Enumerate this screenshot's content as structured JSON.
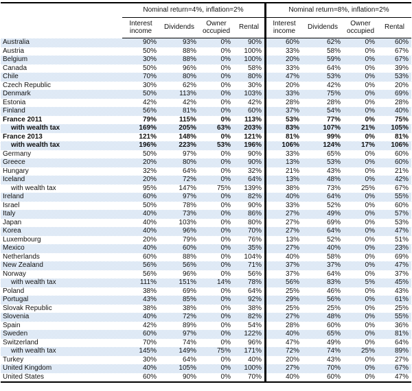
{
  "colors": {
    "stripe_blue": "#bfd4ec",
    "rule_black": "#000000",
    "text": "#111111",
    "background": "#ffffff"
  },
  "chart_data": {
    "type": "table",
    "group_headers": [
      "Nominal return=4%, inflation=2%",
      "Nominal return=8%, inflation=2%"
    ],
    "columns": [
      "Interest income",
      "Dividends",
      "Owner occupied",
      "Rental"
    ],
    "row_header_column": "",
    "layout": {
      "stripes": "alternating dithered light blue starting with first data row",
      "group_divider": "thick black vertical rule"
    },
    "rows": [
      {
        "label": "Australia",
        "indent": false,
        "bold": false,
        "values": [
          "90%",
          "93%",
          "0%",
          "90%",
          "60%",
          "62%",
          "0%",
          "60%"
        ]
      },
      {
        "label": "Austria",
        "indent": false,
        "bold": false,
        "values": [
          "50%",
          "88%",
          "0%",
          "100%",
          "33%",
          "58%",
          "0%",
          "67%"
        ]
      },
      {
        "label": "Belgium",
        "indent": false,
        "bold": false,
        "values": [
          "30%",
          "88%",
          "0%",
          "100%",
          "20%",
          "59%",
          "0%",
          "67%"
        ]
      },
      {
        "label": "Canada",
        "indent": false,
        "bold": false,
        "values": [
          "50%",
          "96%",
          "0%",
          "58%",
          "33%",
          "64%",
          "0%",
          "39%"
        ]
      },
      {
        "label": "Chile",
        "indent": false,
        "bold": false,
        "values": [
          "70%",
          "80%",
          "0%",
          "80%",
          "47%",
          "53%",
          "0%",
          "53%"
        ]
      },
      {
        "label": "Czech Republic",
        "indent": false,
        "bold": false,
        "values": [
          "30%",
          "62%",
          "0%",
          "30%",
          "20%",
          "42%",
          "0%",
          "20%"
        ]
      },
      {
        "label": "Denmark",
        "indent": false,
        "bold": false,
        "values": [
          "50%",
          "113%",
          "0%",
          "103%",
          "33%",
          "75%",
          "0%",
          "69%"
        ]
      },
      {
        "label": "Estonia",
        "indent": false,
        "bold": false,
        "values": [
          "42%",
          "42%",
          "0%",
          "42%",
          "28%",
          "28%",
          "0%",
          "28%"
        ]
      },
      {
        "label": "Finland",
        "indent": false,
        "bold": false,
        "values": [
          "56%",
          "81%",
          "0%",
          "60%",
          "37%",
          "54%",
          "0%",
          "40%"
        ]
      },
      {
        "label": "France 2011",
        "indent": false,
        "bold": true,
        "values": [
          "79%",
          "115%",
          "0%",
          "113%",
          "53%",
          "77%",
          "0%",
          "75%"
        ]
      },
      {
        "label": "with wealth tax",
        "indent": true,
        "bold": true,
        "values": [
          "169%",
          "205%",
          "63%",
          "203%",
          "83%",
          "107%",
          "21%",
          "105%"
        ]
      },
      {
        "label": "France 2013",
        "indent": false,
        "bold": true,
        "values": [
          "121%",
          "148%",
          "0%",
          "121%",
          "81%",
          "99%",
          "0%",
          "81%"
        ]
      },
      {
        "label": "with wealth tax",
        "indent": true,
        "bold": true,
        "values": [
          "196%",
          "223%",
          "53%",
          "196%",
          "106%",
          "124%",
          "17%",
          "106%"
        ]
      },
      {
        "label": "Germany",
        "indent": false,
        "bold": false,
        "values": [
          "50%",
          "97%",
          "0%",
          "90%",
          "33%",
          "65%",
          "0%",
          "60%"
        ]
      },
      {
        "label": "Greece",
        "indent": false,
        "bold": false,
        "values": [
          "20%",
          "80%",
          "0%",
          "90%",
          "13%",
          "53%",
          "0%",
          "60%"
        ]
      },
      {
        "label": "Hungary",
        "indent": false,
        "bold": false,
        "values": [
          "32%",
          "64%",
          "0%",
          "32%",
          "21%",
          "43%",
          "0%",
          "21%"
        ]
      },
      {
        "label": "Iceland",
        "indent": false,
        "bold": false,
        "values": [
          "20%",
          "72%",
          "0%",
          "64%",
          "13%",
          "48%",
          "0%",
          "42%"
        ]
      },
      {
        "label": "with wealth tax",
        "indent": true,
        "bold": false,
        "values": [
          "95%",
          "147%",
          "75%",
          "139%",
          "38%",
          "73%",
          "25%",
          "67%"
        ]
      },
      {
        "label": "Ireland",
        "indent": false,
        "bold": false,
        "values": [
          "60%",
          "97%",
          "0%",
          "82%",
          "40%",
          "64%",
          "0%",
          "55%"
        ]
      },
      {
        "label": "Israel",
        "indent": false,
        "bold": false,
        "values": [
          "50%",
          "78%",
          "0%",
          "90%",
          "33%",
          "52%",
          "0%",
          "60%"
        ]
      },
      {
        "label": "Italy",
        "indent": false,
        "bold": false,
        "values": [
          "40%",
          "73%",
          "0%",
          "86%",
          "27%",
          "49%",
          "0%",
          "57%"
        ]
      },
      {
        "label": "Japan",
        "indent": false,
        "bold": false,
        "values": [
          "40%",
          "103%",
          "0%",
          "80%",
          "27%",
          "69%",
          "0%",
          "53%"
        ]
      },
      {
        "label": "Korea",
        "indent": false,
        "bold": false,
        "values": [
          "40%",
          "96%",
          "0%",
          "70%",
          "27%",
          "64%",
          "0%",
          "47%"
        ]
      },
      {
        "label": "Luxembourg",
        "indent": false,
        "bold": false,
        "values": [
          "20%",
          "79%",
          "0%",
          "76%",
          "13%",
          "52%",
          "0%",
          "51%"
        ]
      },
      {
        "label": "Mexico",
        "indent": false,
        "bold": false,
        "values": [
          "40%",
          "60%",
          "0%",
          "35%",
          "27%",
          "40%",
          "0%",
          "23%"
        ]
      },
      {
        "label": "Netherlands",
        "indent": false,
        "bold": false,
        "values": [
          "60%",
          "88%",
          "0%",
          "104%",
          "40%",
          "58%",
          "0%",
          "69%"
        ]
      },
      {
        "label": "New Zealand",
        "indent": false,
        "bold": false,
        "values": [
          "56%",
          "56%",
          "0%",
          "71%",
          "37%",
          "37%",
          "0%",
          "47%"
        ]
      },
      {
        "label": "Norway",
        "indent": false,
        "bold": false,
        "values": [
          "56%",
          "96%",
          "0%",
          "56%",
          "37%",
          "64%",
          "0%",
          "37%"
        ]
      },
      {
        "label": "with wealth tax",
        "indent": true,
        "bold": false,
        "values": [
          "111%",
          "151%",
          "14%",
          "78%",
          "56%",
          "83%",
          "5%",
          "45%"
        ]
      },
      {
        "label": "Poland",
        "indent": false,
        "bold": false,
        "values": [
          "38%",
          "69%",
          "0%",
          "64%",
          "25%",
          "46%",
          "0%",
          "43%"
        ]
      },
      {
        "label": "Portugal",
        "indent": false,
        "bold": false,
        "values": [
          "43%",
          "85%",
          "0%",
          "92%",
          "29%",
          "56%",
          "0%",
          "61%"
        ]
      },
      {
        "label": "Slovak Republic",
        "indent": false,
        "bold": false,
        "values": [
          "38%",
          "38%",
          "0%",
          "38%",
          "25%",
          "25%",
          "0%",
          "25%"
        ]
      },
      {
        "label": "Slovenia",
        "indent": false,
        "bold": false,
        "values": [
          "40%",
          "72%",
          "0%",
          "82%",
          "27%",
          "48%",
          "0%",
          "55%"
        ]
      },
      {
        "label": "Spain",
        "indent": false,
        "bold": false,
        "values": [
          "42%",
          "89%",
          "0%",
          "54%",
          "28%",
          "60%",
          "0%",
          "36%"
        ]
      },
      {
        "label": "Sweden",
        "indent": false,
        "bold": false,
        "values": [
          "60%",
          "97%",
          "0%",
          "122%",
          "40%",
          "65%",
          "0%",
          "81%"
        ]
      },
      {
        "label": "Switzerland",
        "indent": false,
        "bold": false,
        "values": [
          "70%",
          "74%",
          "0%",
          "96%",
          "47%",
          "49%",
          "0%",
          "64%"
        ]
      },
      {
        "label": "with wealth tax",
        "indent": true,
        "bold": false,
        "values": [
          "145%",
          "149%",
          "75%",
          "171%",
          "72%",
          "74%",
          "25%",
          "89%"
        ]
      },
      {
        "label": "Turkey",
        "indent": false,
        "bold": false,
        "values": [
          "30%",
          "64%",
          "0%",
          "40%",
          "20%",
          "43%",
          "0%",
          "27%"
        ]
      },
      {
        "label": "United Kingdom",
        "indent": false,
        "bold": false,
        "values": [
          "40%",
          "105%",
          "0%",
          "100%",
          "27%",
          "70%",
          "0%",
          "67%"
        ]
      },
      {
        "label": "United States",
        "indent": false,
        "bold": false,
        "values": [
          "60%",
          "90%",
          "0%",
          "70%",
          "40%",
          "60%",
          "0%",
          "47%"
        ]
      }
    ]
  }
}
